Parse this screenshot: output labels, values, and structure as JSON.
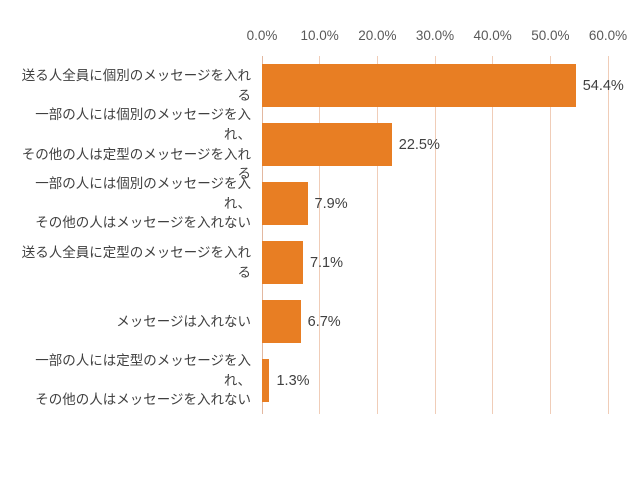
{
  "chart_data": {
    "type": "bar",
    "orientation": "horizontal",
    "title": "",
    "xlabel": "",
    "ylabel": "",
    "xlim": [
      0,
      60
    ],
    "grid": true,
    "x_ticks": [
      "0.0%",
      "10.0%",
      "20.0%",
      "30.0%",
      "40.0%",
      "50.0%",
      "60.0%"
    ],
    "categories": [
      "送る人全員に個別のメッセージを入れる",
      "一部の人には個別のメッセージを入れ、\nその他の人は定型のメッセージを入れる",
      "一部の人には個別のメッセージを入れ、\nその他の人はメッセージを入れない",
      "送る人全員に定型のメッセージを入れる",
      "メッセージは入れない",
      "一部の人には定型のメッセージを入れ、\nその他の人はメッセージを入れない"
    ],
    "values": [
      54.4,
      22.5,
      7.9,
      7.1,
      6.7,
      1.3
    ],
    "value_labels": [
      "54.4%",
      "22.5%",
      "7.9%",
      "7.1%",
      "6.7%",
      "1.3%"
    ],
    "bar_color": "#e87e23",
    "gridline_color": "#f0cdb8",
    "text_color": "#404040",
    "tick_color": "#595959",
    "legend": "none"
  }
}
